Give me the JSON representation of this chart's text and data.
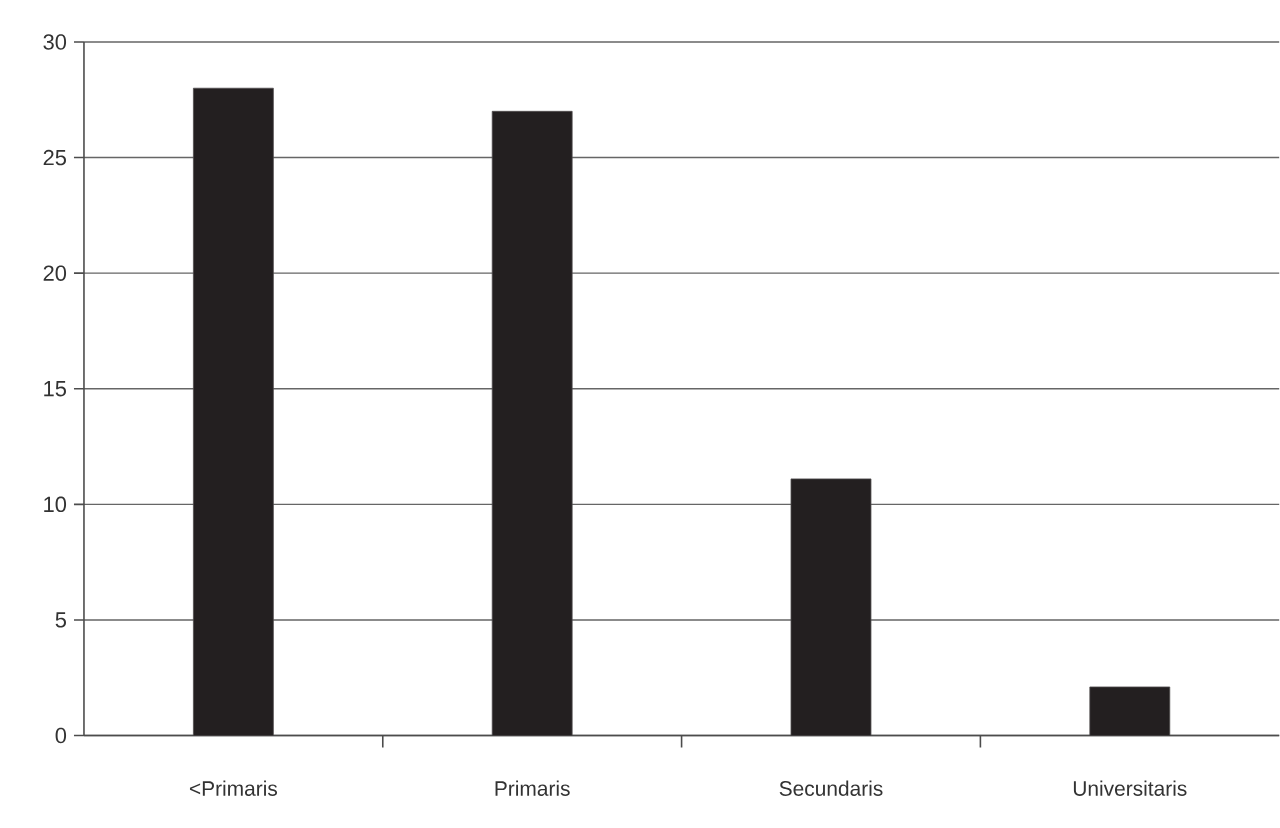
{
  "chart_data": {
    "type": "bar",
    "categories": [
      "<Primaris",
      "Primaris",
      "Secundaris",
      "Universitaris"
    ],
    "values": [
      28.0,
      27.0,
      11.1,
      2.1
    ],
    "color": "#231f20",
    "ylim": [
      0,
      30
    ],
    "yticks": [
      0,
      5,
      10,
      15,
      20,
      25,
      30
    ],
    "grid": "y"
  }
}
